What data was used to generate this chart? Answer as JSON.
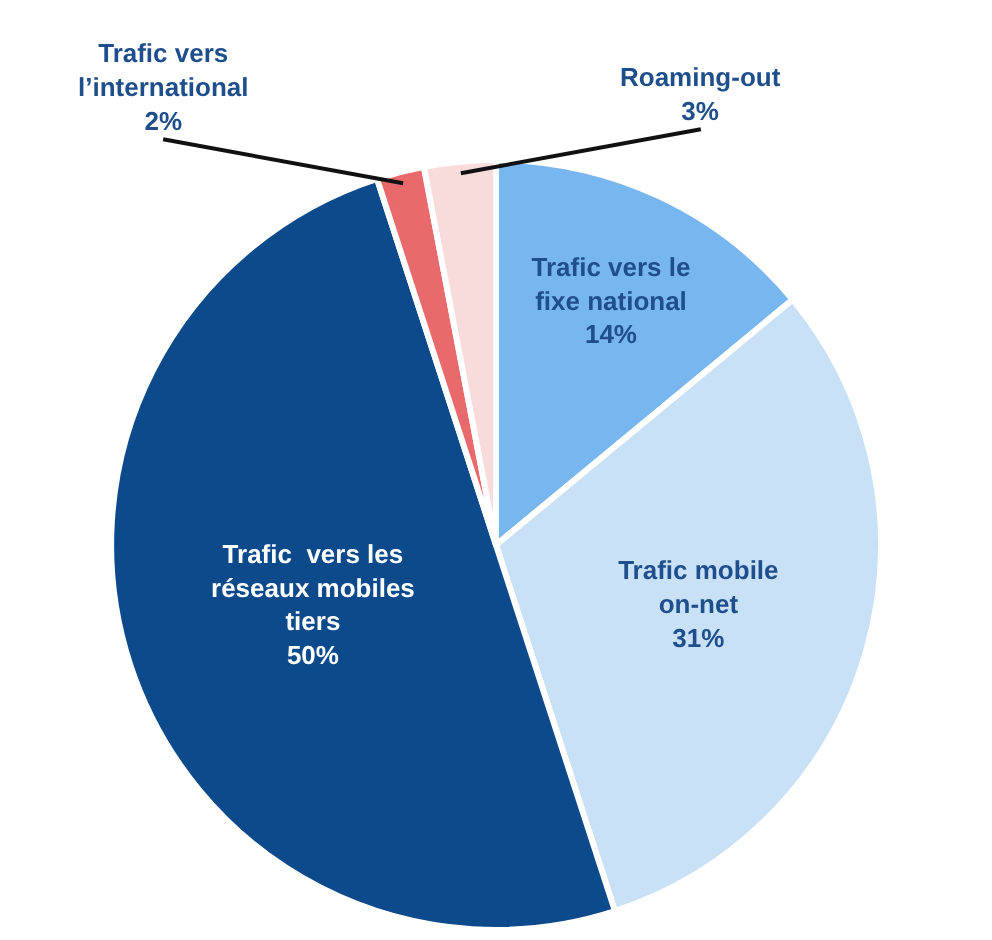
{
  "chart_data": {
    "type": "pie",
    "categories": [
      "Trafic vers le fixe national",
      "Trafic mobile on-net",
      "Trafic  vers les réseaux mobiles tiers",
      "Trafic vers l’international",
      "Roaming-out"
    ],
    "values": [
      14,
      31,
      50,
      2,
      3
    ],
    "colors": [
      "#78b6f0",
      "#c9e1f7",
      "#0d4a8b",
      "#e96a6c",
      "#f8dcdc"
    ],
    "value_labels": [
      "14%",
      "31%",
      "50%",
      "2%",
      "3%"
    ]
  }
}
